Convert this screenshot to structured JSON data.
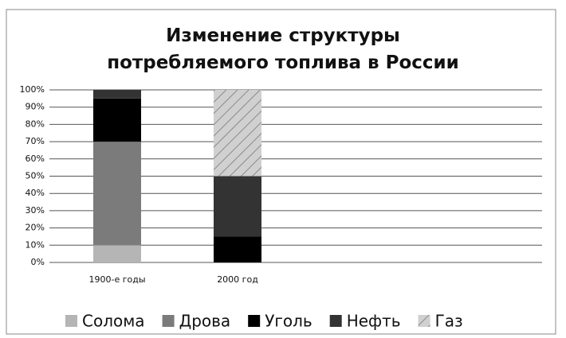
{
  "chart_data": {
    "type": "stacked_bar",
    "title": "Изменение структуры потребляемого топлива в России",
    "categories": [
      "1900-е годы",
      "2000 год"
    ],
    "series": [
      {
        "name": "Солома",
        "color": "#b5b5b5",
        "values": [
          10,
          0
        ]
      },
      {
        "name": "Дрова",
        "color": "#7b7b7b",
        "values": [
          60,
          0
        ]
      },
      {
        "name": "Уголь",
        "color": "#000000",
        "values": [
          25,
          15
        ]
      },
      {
        "name": "Нефть",
        "color": "#333333",
        "values": [
          5,
          35
        ]
      },
      {
        "name": "Газ",
        "color": "#d0d0d0",
        "pattern": "hatch",
        "values": [
          0,
          50
        ]
      }
    ],
    "ylim": [
      0,
      100
    ],
    "yticks": [
      {
        "value": 0,
        "label": "0%"
      },
      {
        "value": 10,
        "label": "10%"
      },
      {
        "value": 20,
        "label": "20%"
      },
      {
        "value": 30,
        "label": "30%"
      },
      {
        "value": 40,
        "label": "40%"
      },
      {
        "value": 50,
        "label": "50%"
      },
      {
        "value": 60,
        "label": "60%"
      },
      {
        "value": 70,
        "label": "70%"
      },
      {
        "value": 80,
        "label": "80%"
      },
      {
        "value": 90,
        "label": "90%"
      },
      {
        "value": 100,
        "label": "100%"
      }
    ],
    "grid": true,
    "legend": "bottom"
  }
}
